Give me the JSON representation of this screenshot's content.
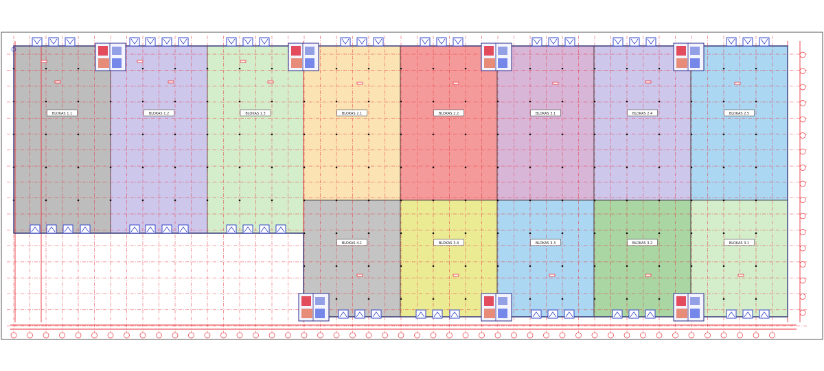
{
  "blocks": [
    {
      "id": "b11",
      "label": "BLOKAS  1.1",
      "color": "#bdbdbd"
    },
    {
      "id": "b12",
      "label": "BLOKAS  1.2",
      "color": "#cdc7ec"
    },
    {
      "id": "b13",
      "label": "BLOKAS  1.3",
      "color": "#d4eecb"
    },
    {
      "id": "b21",
      "label": "BLOKAS  2.1",
      "color": "#fbe3b3"
    },
    {
      "id": "b22",
      "label": "BLOKAS  2.2",
      "color": "#f59a9a"
    },
    {
      "id": "b31",
      "label": "BLOKAS  3.1",
      "color": "#d8b6d8"
    },
    {
      "id": "b24",
      "label": "BLOKAS  2.4",
      "color": "#cdc7ec"
    },
    {
      "id": "b25",
      "label": "BLOKAS  2.5",
      "color": "#abd7f2"
    },
    {
      "id": "b41",
      "label": "BLOKAS  4.1",
      "color": "#c4c4c4"
    },
    {
      "id": "b34",
      "label": "BLOKAS  3.4",
      "color": "#ebeb94"
    },
    {
      "id": "b33",
      "label": "BLOKAS  3.3",
      "color": "#abd7f2"
    },
    {
      "id": "b32",
      "label": "BLOKAS  3.2",
      "color": "#a9d6a3"
    },
    {
      "id": "b3b",
      "label": "BLOKAS  3.1",
      "color": "#d4eecb"
    }
  ],
  "colors": {
    "grid": "#e8313a",
    "wall": "#3b3b7a",
    "dock": "#3346c9",
    "frame": "#555555"
  }
}
